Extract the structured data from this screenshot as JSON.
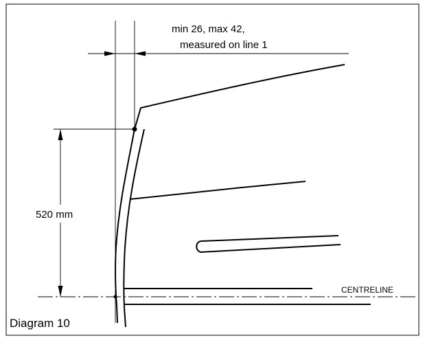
{
  "diagram": {
    "dimension_note_line1": "min 26, max 42,",
    "dimension_note_line2": "measured on line 1",
    "height_label": "520 mm",
    "centreline_label": "CENTRELINE",
    "caption": "Diagram 10"
  },
  "colors": {
    "line": "#000000",
    "background": "#ffffff"
  }
}
